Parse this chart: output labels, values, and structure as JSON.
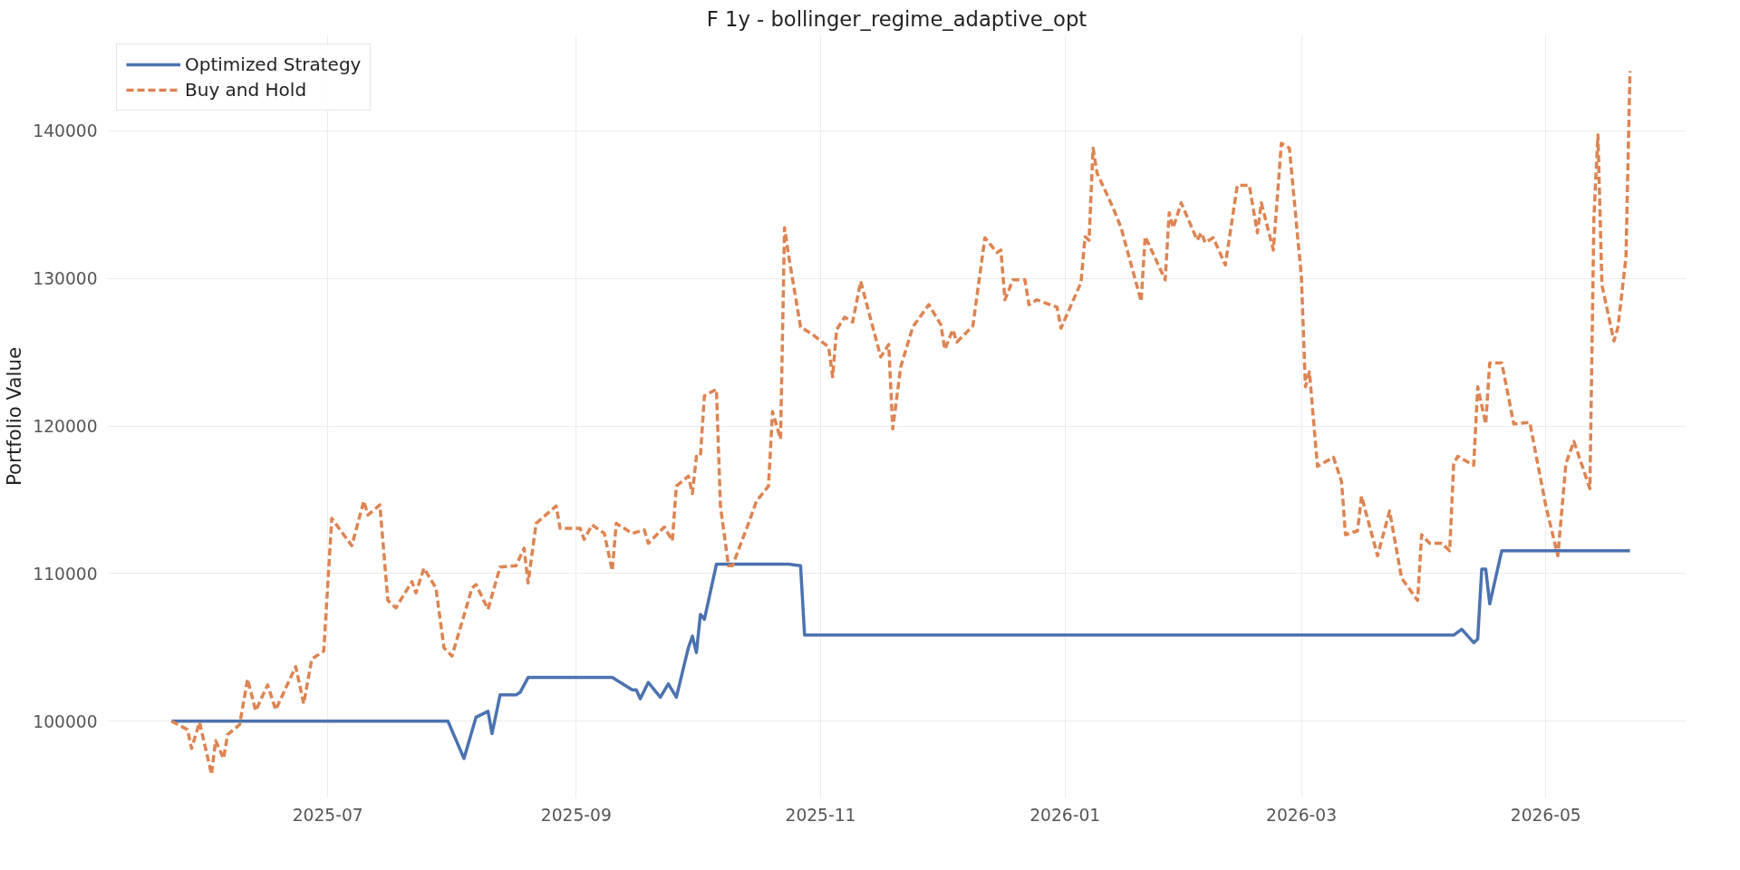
{
  "chart_data": {
    "type": "line",
    "title": "F 1y - bollinger_regime_adaptive_opt",
    "ylabel": "Portfolio Value",
    "xlim": [
      "2025-05-07",
      "2026-06-05"
    ],
    "ylim": [
      94800,
      146500
    ],
    "xticks": [
      {
        "value": "2025-07-01",
        "label": "2025-07"
      },
      {
        "value": "2025-09-01",
        "label": "2025-09"
      },
      {
        "value": "2025-11-01",
        "label": "2025-11"
      },
      {
        "value": "2026-01-01",
        "label": "2026-01"
      },
      {
        "value": "2026-03-01",
        "label": "2026-03"
      },
      {
        "value": "2026-05-01",
        "label": "2026-05"
      }
    ],
    "yticks": [
      100000,
      110000,
      120000,
      130000,
      140000
    ],
    "grid": true,
    "legend": "top left",
    "marker": "none",
    "series": [
      {
        "name": "Optimized Strategy",
        "color": "#4c72b0",
        "line_style": "solid",
        "x": [
          "2025-05-23",
          "2025-07-31",
          "2025-08-04",
          "2025-08-07",
          "2025-08-10",
          "2025-08-11",
          "2025-08-13",
          "2025-08-17",
          "2025-08-18",
          "2025-08-20",
          "2025-09-10",
          "2025-09-15",
          "2025-09-16",
          "2025-09-17",
          "2025-09-19",
          "2025-09-22",
          "2025-09-24",
          "2025-09-26",
          "2025-09-29",
          "2025-09-30",
          "2025-10-01",
          "2025-10-02",
          "2025-10-03",
          "2025-10-06",
          "2025-10-24",
          "2025-10-27",
          "2025-10-28",
          "2026-04-08",
          "2026-04-10",
          "2026-04-13",
          "2026-04-14",
          "2026-04-15",
          "2026-04-16",
          "2026-04-17",
          "2026-04-20",
          "2026-05-22"
        ],
        "values": [
          100000,
          100000,
          97470,
          100270,
          100670,
          99160,
          101780,
          101780,
          101950,
          102960,
          102960,
          102120,
          102120,
          101520,
          102630,
          101620,
          102530,
          101620,
          104980,
          105760,
          104650,
          107240,
          106900,
          110640,
          110640,
          110540,
          105830,
          105830,
          106230,
          105320,
          105560,
          110300,
          110300,
          107950,
          111550,
          111550
        ]
      },
      {
        "name": "Buy and Hold",
        "color": "#dd8452",
        "line_style": "dashed",
        "x": [
          "2025-05-23",
          "2025-05-27",
          "2025-05-28",
          "2025-05-30",
          "2025-06-02",
          "2025-06-03",
          "2025-06-05",
          "2025-06-06",
          "2025-06-09",
          "2025-06-11",
          "2025-06-13",
          "2025-06-16",
          "2025-06-18",
          "2025-06-23",
          "2025-06-25",
          "2025-06-27",
          "2025-06-30",
          "2025-07-02",
          "2025-07-07",
          "2025-07-10",
          "2025-07-11",
          "2025-07-14",
          "2025-07-16",
          "2025-07-18",
          "2025-07-22",
          "2025-07-23",
          "2025-07-25",
          "2025-07-28",
          "2025-07-30",
          "2025-08-01",
          "2025-08-06",
          "2025-08-07",
          "2025-08-10",
          "2025-08-13",
          "2025-08-17",
          "2025-08-19",
          "2025-08-20",
          "2025-08-22",
          "2025-08-27",
          "2025-08-28",
          "2025-09-02",
          "2025-09-03",
          "2025-09-05",
          "2025-09-08",
          "2025-09-10",
          "2025-09-11",
          "2025-09-15",
          "2025-09-18",
          "2025-09-19",
          "2025-09-23",
          "2025-09-25",
          "2025-09-26",
          "2025-09-29",
          "2025-09-30",
          "2025-10-01",
          "2025-10-02",
          "2025-10-03",
          "2025-10-06",
          "2025-10-07",
          "2025-10-09",
          "2025-10-10",
          "2025-10-14",
          "2025-10-16",
          "2025-10-19",
          "2025-10-20",
          "2025-10-22",
          "2025-10-23",
          "2025-10-24",
          "2025-10-27",
          "2025-10-30",
          "2025-11-03",
          "2025-11-04",
          "2025-11-05",
          "2025-11-07",
          "2025-11-09",
          "2025-11-11",
          "2025-11-16",
          "2025-11-18",
          "2025-11-19",
          "2025-11-21",
          "2025-11-24",
          "2025-11-28",
          "2025-12-01",
          "2025-12-02",
          "2025-12-04",
          "2025-12-05",
          "2025-12-09",
          "2025-12-12",
          "2025-12-15",
          "2025-12-16",
          "2025-12-17",
          "2025-12-19",
          "2025-12-22",
          "2025-12-23",
          "2025-12-25",
          "2025-12-30",
          "2025-12-31",
          "2026-01-05",
          "2026-01-06",
          "2026-01-07",
          "2026-01-08",
          "2026-01-09",
          "2026-01-13",
          "2026-01-15",
          "2026-01-20",
          "2026-01-21",
          "2026-01-22",
          "2026-01-26",
          "2026-01-27",
          "2026-01-28",
          "2026-01-30",
          "2026-02-03",
          "2026-02-04",
          "2026-02-05",
          "2026-02-07",
          "2026-02-10",
          "2026-02-13",
          "2026-02-16",
          "2026-02-18",
          "2026-02-19",
          "2026-02-22",
          "2026-02-24",
          "2026-02-26",
          "2026-03-01",
          "2026-03-02",
          "2026-03-03",
          "2026-03-05",
          "2026-03-09",
          "2026-03-11",
          "2026-03-12",
          "2026-03-15",
          "2026-03-16",
          "2026-03-20",
          "2026-03-23",
          "2026-03-26",
          "2026-03-30",
          "2026-03-31",
          "2026-04-02",
          "2026-04-05",
          "2026-04-07",
          "2026-04-08",
          "2026-04-09",
          "2026-04-13",
          "2026-04-14",
          "2026-04-16",
          "2026-04-17",
          "2026-04-20",
          "2026-04-23",
          "2026-04-27",
          "2026-05-01",
          "2026-05-04",
          "2026-05-06",
          "2026-05-08",
          "2026-05-12",
          "2026-05-13",
          "2026-05-14",
          "2026-05-15",
          "2026-05-18",
          "2026-05-19",
          "2026-05-21",
          "2026-05-22"
        ],
        "values": [
          100000,
          99430,
          98150,
          99930,
          96400,
          98690,
          97470,
          99090,
          99760,
          102860,
          100710,
          102460,
          100770,
          103700,
          101180,
          104210,
          104750,
          113740,
          111890,
          114920,
          113970,
          114650,
          108180,
          107680,
          109460,
          108690,
          110370,
          109020,
          104980,
          104410,
          109020,
          109260,
          107580,
          110440,
          110540,
          111720,
          109360,
          113400,
          114580,
          113060,
          113060,
          112320,
          113300,
          112730,
          110200,
          113400,
          112730,
          112960,
          112050,
          113160,
          112220,
          115930,
          116600,
          115420,
          117950,
          117950,
          122050,
          122490,
          114580,
          110540,
          110540,
          113400,
          114920,
          115930,
          120980,
          119120,
          133430,
          131580,
          126700,
          126200,
          125350,
          123330,
          126530,
          127370,
          127040,
          129800,
          124680,
          125520,
          119800,
          124010,
          126700,
          128220,
          126870,
          125190,
          126530,
          125690,
          126770,
          132760,
          131750,
          131920,
          128550,
          129900,
          129900,
          128220,
          128550,
          128050,
          126630,
          129730,
          132830,
          132590,
          138820,
          137140,
          134780,
          133430,
          128450,
          132830,
          132260,
          129900,
          134450,
          133430,
          135120,
          132590,
          133090,
          132420,
          132760,
          130910,
          136300,
          136300,
          133090,
          135120,
          131920,
          139160,
          138820,
          130070,
          122660,
          123670,
          117270,
          117880,
          116260,
          112630,
          112900,
          115250,
          111210,
          114240,
          109700,
          108180,
          112630,
          112050,
          112050,
          111550,
          117440,
          117950,
          117340,
          122660,
          120140,
          124280,
          124280,
          120140,
          120240,
          114580,
          111210,
          117440,
          118960,
          115760,
          134110,
          139730,
          129560,
          125760,
          126700,
          131410,
          144040
        ]
      }
    ]
  }
}
